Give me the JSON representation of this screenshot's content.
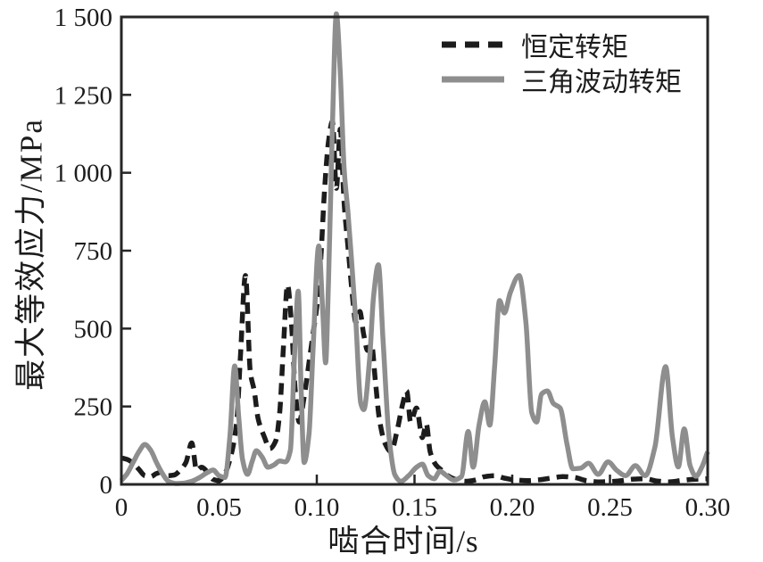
{
  "figure": {
    "background": "#ffffff",
    "axis_color": "#262626",
    "frame": true
  },
  "chart_data": {
    "type": "line",
    "title": "",
    "xlabel": "啮合时间/s",
    "ylabel": "最大等效应力/MPa",
    "xlim": [
      0,
      0.3
    ],
    "ylim": [
      0,
      1500
    ],
    "grid": false,
    "legend_position": "top-right-inside",
    "x_tick_values": [
      0,
      0.05,
      0.1,
      0.15,
      0.2,
      0.25,
      0.3
    ],
    "x_tick_labels": [
      "0",
      "0.05",
      "0.10",
      "0.15",
      "0.20",
      "0.25",
      "0.30"
    ],
    "y_tick_values": [
      0,
      250,
      500,
      750,
      1000,
      1250,
      1500
    ],
    "y_tick_labels": [
      "0",
      "250",
      "500",
      "750",
      "1 000",
      "1 250",
      "1 500"
    ],
    "series": [
      {
        "name": "恒定转矩",
        "style": "dashed",
        "color": "#1c1c1c",
        "line_width": 5.5,
        "points": [
          [
            0.0,
            85
          ],
          [
            0.003,
            80
          ],
          [
            0.006,
            68
          ],
          [
            0.009,
            48
          ],
          [
            0.012,
            28
          ],
          [
            0.015,
            25
          ],
          [
            0.018,
            35
          ],
          [
            0.021,
            40
          ],
          [
            0.024,
            28
          ],
          [
            0.027,
            30
          ],
          [
            0.03,
            45
          ],
          [
            0.033,
            70
          ],
          [
            0.036,
            133
          ],
          [
            0.0385,
            45
          ],
          [
            0.041,
            55
          ],
          [
            0.044,
            40
          ],
          [
            0.047,
            16
          ],
          [
            0.05,
            12
          ],
          [
            0.053,
            35
          ],
          [
            0.056,
            90
          ],
          [
            0.059,
            200
          ],
          [
            0.061,
            420
          ],
          [
            0.0635,
            670
          ],
          [
            0.066,
            360
          ],
          [
            0.068,
            300
          ],
          [
            0.07,
            210
          ],
          [
            0.073,
            155
          ],
          [
            0.076,
            115
          ],
          [
            0.079,
            140
          ],
          [
            0.081,
            230
          ],
          [
            0.083,
            450
          ],
          [
            0.085,
            640
          ],
          [
            0.087,
            520
          ],
          [
            0.089,
            300
          ],
          [
            0.091,
            200
          ],
          [
            0.0935,
            280
          ],
          [
            0.096,
            390
          ],
          [
            0.098,
            480
          ],
          [
            0.1,
            570
          ],
          [
            0.102,
            720
          ],
          [
            0.104,
            950
          ],
          [
            0.106,
            1100
          ],
          [
            0.108,
            1165
          ],
          [
            0.11,
            950
          ],
          [
            0.112,
            1140
          ],
          [
            0.114,
            900
          ],
          [
            0.116,
            760
          ],
          [
            0.118,
            620
          ],
          [
            0.12,
            520
          ],
          [
            0.122,
            555
          ],
          [
            0.124,
            480
          ],
          [
            0.126,
            430
          ],
          [
            0.128,
            450
          ],
          [
            0.13,
            330
          ],
          [
            0.132,
            210
          ],
          [
            0.135,
            130
          ],
          [
            0.138,
            105
          ],
          [
            0.141,
            170
          ],
          [
            0.144,
            260
          ],
          [
            0.146,
            300
          ],
          [
            0.148,
            200
          ],
          [
            0.151,
            245
          ],
          [
            0.154,
            150
          ],
          [
            0.156,
            195
          ],
          [
            0.158,
            105
          ],
          [
            0.161,
            62
          ],
          [
            0.164,
            45
          ],
          [
            0.167,
            28
          ],
          [
            0.171,
            16
          ],
          [
            0.176,
            10
          ],
          [
            0.181,
            14
          ],
          [
            0.186,
            25
          ],
          [
            0.191,
            28
          ],
          [
            0.196,
            20
          ],
          [
            0.202,
            14
          ],
          [
            0.208,
            12
          ],
          [
            0.214,
            15
          ],
          [
            0.22,
            20
          ],
          [
            0.226,
            25
          ],
          [
            0.232,
            22
          ],
          [
            0.238,
            12
          ],
          [
            0.244,
            8
          ],
          [
            0.25,
            9
          ],
          [
            0.256,
            12
          ],
          [
            0.262,
            17
          ],
          [
            0.268,
            18
          ],
          [
            0.274,
            11
          ],
          [
            0.28,
            8
          ],
          [
            0.286,
            12
          ],
          [
            0.292,
            16
          ],
          [
            0.3,
            18
          ]
        ]
      },
      {
        "name": "三角波动转矩",
        "style": "solid",
        "color": "#8e8e8e",
        "line_width": 5.5,
        "points": [
          [
            0.0,
            12
          ],
          [
            0.003,
            35
          ],
          [
            0.006,
            70
          ],
          [
            0.009,
            105
          ],
          [
            0.012,
            128
          ],
          [
            0.015,
            110
          ],
          [
            0.018,
            70
          ],
          [
            0.021,
            35
          ],
          [
            0.024,
            10
          ],
          [
            0.028,
            3
          ],
          [
            0.032,
            4
          ],
          [
            0.036,
            10
          ],
          [
            0.04,
            22
          ],
          [
            0.044,
            38
          ],
          [
            0.047,
            46
          ],
          [
            0.05,
            28
          ],
          [
            0.053,
            22
          ],
          [
            0.0555,
            150
          ],
          [
            0.058,
            380
          ],
          [
            0.06,
            220
          ],
          [
            0.062,
            80
          ],
          [
            0.0645,
            32
          ],
          [
            0.067,
            75
          ],
          [
            0.069,
            108
          ],
          [
            0.072,
            88
          ],
          [
            0.075,
            55
          ],
          [
            0.078,
            62
          ],
          [
            0.081,
            75
          ],
          [
            0.084,
            72
          ],
          [
            0.0865,
            110
          ],
          [
            0.0885,
            400
          ],
          [
            0.0905,
            620
          ],
          [
            0.092,
            300
          ],
          [
            0.0935,
            70
          ],
          [
            0.096,
            160
          ],
          [
            0.098,
            420
          ],
          [
            0.101,
            765
          ],
          [
            0.103,
            560
          ],
          [
            0.1045,
            390
          ],
          [
            0.106,
            650
          ],
          [
            0.108,
            1150
          ],
          [
            0.11,
            1510
          ],
          [
            0.112,
            1320
          ],
          [
            0.114,
            1010
          ],
          [
            0.116,
            870
          ],
          [
            0.118,
            700
          ],
          [
            0.12,
            520
          ],
          [
            0.1225,
            260
          ],
          [
            0.124,
            240
          ],
          [
            0.127,
            400
          ],
          [
            0.129,
            600
          ],
          [
            0.1315,
            705
          ],
          [
            0.134,
            450
          ],
          [
            0.137,
            150
          ],
          [
            0.14,
            30
          ],
          [
            0.143,
            10
          ],
          [
            0.147,
            28
          ],
          [
            0.151,
            55
          ],
          [
            0.154,
            65
          ],
          [
            0.157,
            28
          ],
          [
            0.16,
            18
          ],
          [
            0.163,
            42
          ],
          [
            0.166,
            30
          ],
          [
            0.17,
            14
          ],
          [
            0.174,
            25
          ],
          [
            0.1775,
            170
          ],
          [
            0.18,
            55
          ],
          [
            0.183,
            190
          ],
          [
            0.186,
            265
          ],
          [
            0.1885,
            190
          ],
          [
            0.191,
            380
          ],
          [
            0.1935,
            590
          ],
          [
            0.196,
            550
          ],
          [
            0.199,
            615
          ],
          [
            0.2035,
            670
          ],
          [
            0.207,
            520
          ],
          [
            0.21,
            230
          ],
          [
            0.2125,
            200
          ],
          [
            0.215,
            290
          ],
          [
            0.218,
            300
          ],
          [
            0.221,
            260
          ],
          [
            0.2245,
            245
          ],
          [
            0.228,
            130
          ],
          [
            0.231,
            50
          ],
          [
            0.235,
            52
          ],
          [
            0.239,
            68
          ],
          [
            0.244,
            32
          ],
          [
            0.249,
            72
          ],
          [
            0.2535,
            45
          ],
          [
            0.258,
            28
          ],
          [
            0.263,
            60
          ],
          [
            0.268,
            28
          ],
          [
            0.273,
            120
          ],
          [
            0.2785,
            378
          ],
          [
            0.282,
            150
          ],
          [
            0.285,
            56
          ],
          [
            0.288,
            178
          ],
          [
            0.291,
            60
          ],
          [
            0.294,
            26
          ],
          [
            0.297,
            55
          ],
          [
            0.3,
            105
          ]
        ]
      }
    ]
  }
}
